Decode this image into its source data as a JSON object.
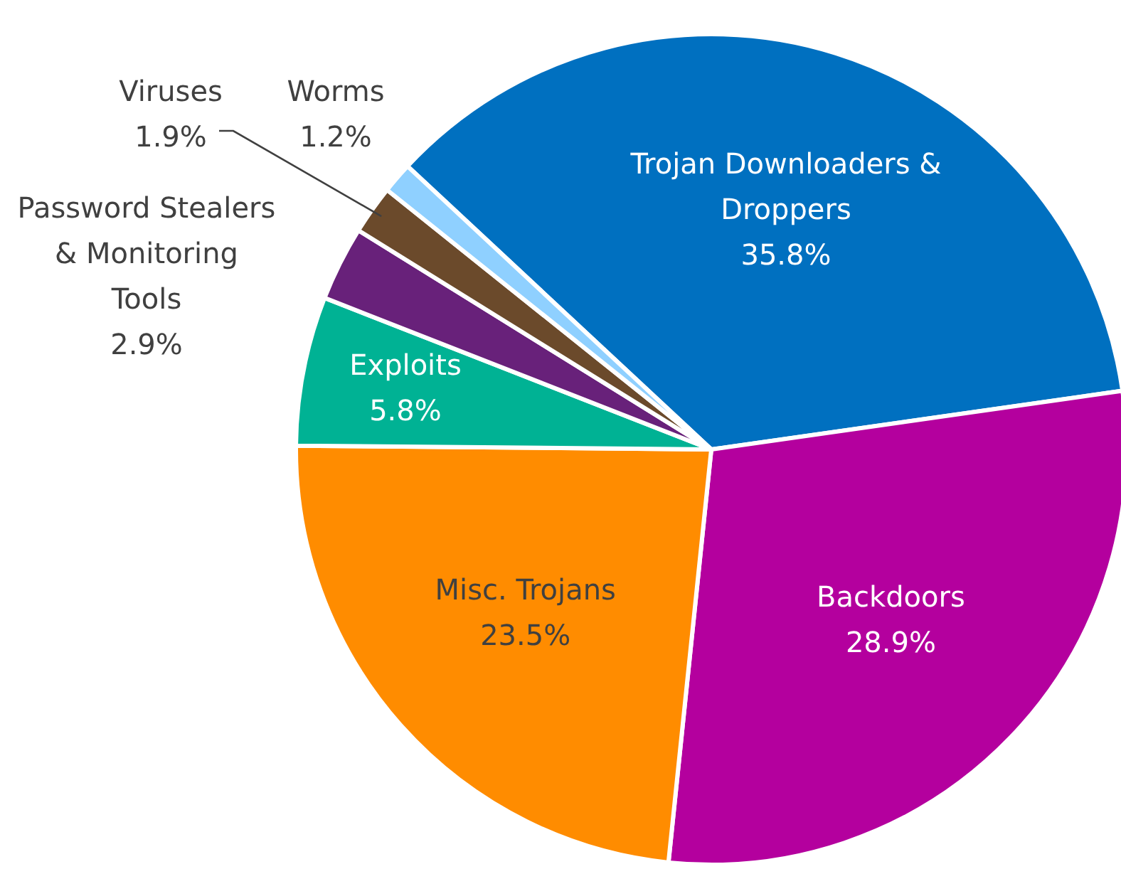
{
  "chart_data": {
    "type": "pie",
    "categories": [
      "Trojan Downloaders & Droppers",
      "Backdoors",
      "Misc. Trojans",
      "Exploits",
      "Password Stealers & Monitoring Tools",
      "Viruses",
      "Worms"
    ],
    "values": [
      35.8,
      28.9,
      23.5,
      5.8,
      2.9,
      1.9,
      1.2
    ],
    "value_labels": [
      "35.8%",
      "28.9%",
      "23.5%",
      "5.8%",
      "2.9%",
      "1.9%",
      "1.2%"
    ],
    "colors": [
      "#0070c0",
      "#b4009e",
      "#ff8c00",
      "#00b294",
      "#68217a",
      "#6b4a2b",
      "#8fd0ff"
    ]
  }
}
